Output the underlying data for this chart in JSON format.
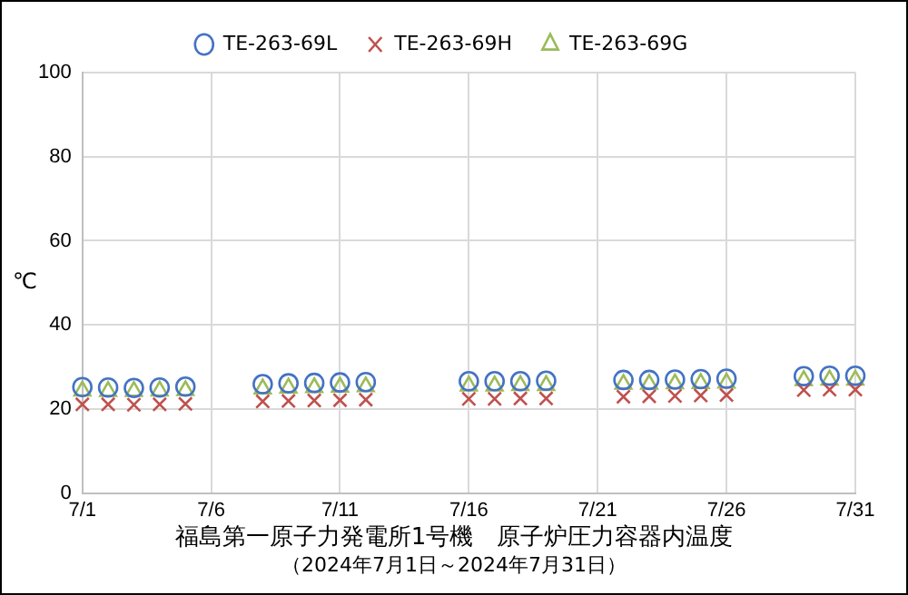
{
  "chart_data": {
    "type": "scatter",
    "title": "福島第一原子力発電所1号機　原子炉圧力容器内温度",
    "subtitle": "（2024年7月1日～2024年7月31日）",
    "ylabel": "℃",
    "x": [
      "--07-01",
      "--07-02",
      "--07-03",
      "--07-04",
      "--07-05",
      "--07-08",
      "--07-09",
      "--07-10",
      "--07-11",
      "--07-12",
      "--07-16",
      "--07-17",
      "--07-18",
      "--07-19",
      "--07-22",
      "--07-23",
      "--07-24",
      "--07-25",
      "--07-26",
      "--07-29",
      "--07-30",
      "--07-31"
    ],
    "series": [
      {
        "name": "TE-263-69L",
        "color": "#4472c4",
        "marker": "circle",
        "values": [
          25.2,
          25.1,
          25.0,
          25.1,
          25.3,
          25.9,
          26.1,
          26.2,
          26.3,
          26.4,
          26.6,
          26.6,
          26.6,
          26.7,
          26.9,
          26.9,
          27.0,
          27.1,
          27.2,
          27.8,
          27.9,
          27.9
        ]
      },
      {
        "name": "TE-263-69H",
        "color": "#c0504d",
        "marker": "cross",
        "values": [
          21.1,
          21.1,
          21.0,
          21.1,
          21.2,
          21.8,
          21.9,
          22.0,
          22.1,
          22.2,
          22.4,
          22.4,
          22.5,
          22.5,
          22.9,
          23.0,
          23.1,
          23.2,
          23.3,
          24.5,
          24.6,
          24.6
        ]
      },
      {
        "name": "TE-263-69G",
        "color": "#9bbb59",
        "marker": "triangle",
        "values": [
          24.3,
          24.2,
          24.2,
          24.3,
          24.4,
          24.8,
          25.0,
          25.1,
          25.2,
          25.3,
          25.5,
          25.5,
          25.6,
          25.6,
          25.9,
          25.9,
          26.0,
          26.1,
          26.2,
          26.8,
          26.9,
          26.9
        ]
      }
    ],
    "xlim": [
      "--07-01",
      "--07-31"
    ],
    "xticks": [
      {
        "value": "--07-01",
        "label": "7/1"
      },
      {
        "value": "--07-06",
        "label": "7/6"
      },
      {
        "value": "--07-11",
        "label": "7/11"
      },
      {
        "value": "--07-16",
        "label": "7/16"
      },
      {
        "value": "--07-21",
        "label": "7/21"
      },
      {
        "value": "--07-26",
        "label": "7/26"
      },
      {
        "value": "--07-31",
        "label": "7/31"
      }
    ],
    "ylim": [
      0,
      100
    ],
    "yticks": [
      0,
      20,
      40,
      60,
      80,
      100
    ],
    "grid": true,
    "legend": "top"
  }
}
